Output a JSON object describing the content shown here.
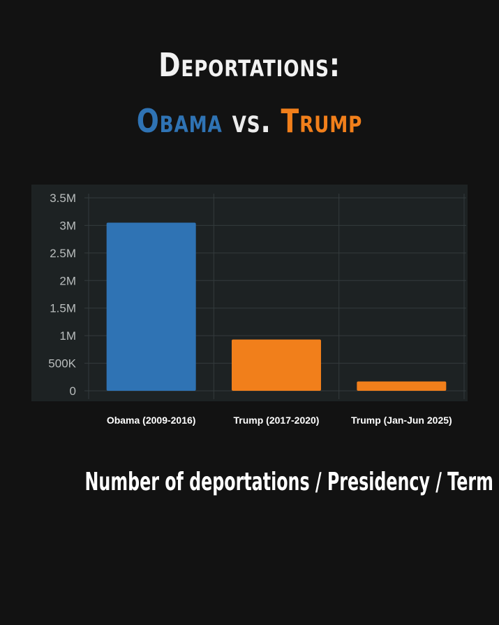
{
  "header": {
    "title_line1": "Deportations:",
    "title_obama": "Obama",
    "title_vs": "vs.",
    "title_trump": "Trump"
  },
  "footer": {
    "caption": "Number of deportations / Presidency / Term"
  },
  "colors": {
    "obama": "#2f73b4",
    "trump": "#f17f1b",
    "background": "#121212",
    "panel": "#1d2223"
  },
  "chart_data": {
    "type": "bar",
    "categories": [
      "Obama (2009-2016)",
      "Trump (2017-2020)",
      "Trump (Jan-Jun 2025)"
    ],
    "values": [
      3050000,
      930000,
      170000
    ],
    "bar_colors": [
      "#2f73b4",
      "#f17f1b",
      "#f17f1b"
    ],
    "ylim": [
      0,
      3500000
    ],
    "yticks": [
      0,
      500000,
      1000000,
      1500000,
      2000000,
      2500000,
      3000000,
      3500000
    ],
    "ytick_labels": [
      "0",
      "500K",
      "1M",
      "1.5M",
      "2M",
      "2.5M",
      "3M",
      "3.5M"
    ],
    "grid": true,
    "xlabel": "",
    "ylabel": ""
  }
}
